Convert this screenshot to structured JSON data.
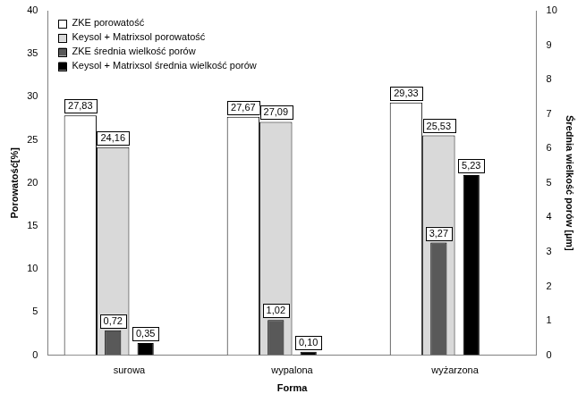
{
  "chart_data": {
    "type": "bar",
    "categories": [
      "surowa",
      "wypalona",
      "wyżarzona"
    ],
    "x_label": "Forma",
    "y_label": "Porowatość[%]",
    "y2_label": "Średnia wielkość porów [µm]",
    "series": [
      {
        "name": "ZKE porowatość",
        "color": "#ffffff",
        "values": [
          27.83,
          27.67,
          29.33
        ],
        "value_labels": [
          "27,83",
          "27,67",
          "29,33"
        ]
      },
      {
        "name": "Keysol + Matrixsol porowatość",
        "color": "#d9d9d9",
        "values": [
          24.16,
          27.09,
          25.53
        ],
        "value_labels": [
          "24,16",
          "27,09",
          "25,53"
        ]
      },
      {
        "name": "ZKE średnia wielkość porów",
        "color": "#595959",
        "axis": "y2",
        "values": [
          0.72,
          1.02,
          3.27
        ],
        "value_labels": [
          "0,72",
          "1,02",
          "3,27"
        ]
      },
      {
        "name": "Keysol + Matrixsol średnia wielkość porów",
        "color": "#000000",
        "axis": "y2",
        "values": [
          0.35,
          0.1,
          5.23
        ],
        "value_labels": [
          "0,35",
          "0,10",
          "5,23"
        ]
      }
    ],
    "ylim": [
      0,
      40
    ],
    "yticks": [
      0,
      5,
      10,
      15,
      20,
      25,
      30,
      35,
      40
    ],
    "y2lim": [
      0,
      10
    ],
    "y2ticks": [
      0,
      1,
      2,
      3,
      4,
      5,
      6,
      7,
      8,
      9,
      10
    ],
    "grid": false,
    "legend": "upper left",
    "data_labels": true
  }
}
